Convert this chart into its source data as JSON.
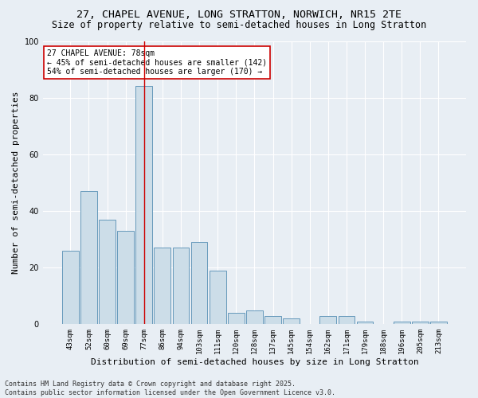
{
  "title_line1": "27, CHAPEL AVENUE, LONG STRATTON, NORWICH, NR15 2TE",
  "title_line2": "Size of property relative to semi-detached houses in Long Stratton",
  "xlabel": "Distribution of semi-detached houses by size in Long Stratton",
  "ylabel": "Number of semi-detached properties",
  "categories": [
    "43sqm",
    "52sqm",
    "60sqm",
    "69sqm",
    "77sqm",
    "86sqm",
    "94sqm",
    "103sqm",
    "111sqm",
    "120sqm",
    "128sqm",
    "137sqm",
    "145sqm",
    "154sqm",
    "162sqm",
    "171sqm",
    "179sqm",
    "188sqm",
    "196sqm",
    "205sqm",
    "213sqm"
  ],
  "values": [
    26,
    47,
    37,
    33,
    84,
    27,
    27,
    29,
    19,
    4,
    5,
    3,
    2,
    0,
    3,
    3,
    1,
    0,
    1,
    1,
    1
  ],
  "bar_color": "#ccdde8",
  "bar_edge_color": "#6699bb",
  "highlight_bar_index": 4,
  "highlight_line_color": "#cc0000",
  "annotation_text": "27 CHAPEL AVENUE: 78sqm\n← 45% of semi-detached houses are smaller (142)\n54% of semi-detached houses are larger (170) →",
  "annotation_box_color": "#ffffff",
  "annotation_box_edge_color": "#cc0000",
  "ylim": [
    0,
    100
  ],
  "yticks": [
    0,
    20,
    40,
    60,
    80,
    100
  ],
  "footnote": "Contains HM Land Registry data © Crown copyright and database right 2025.\nContains public sector information licensed under the Open Government Licence v3.0.",
  "bg_color": "#e8eef4",
  "plot_bg_color": "#e8eef4",
  "grid_color": "#ffffff",
  "title_fontsize": 9.5,
  "subtitle_fontsize": 8.5,
  "tick_fontsize": 6.5,
  "label_fontsize": 8,
  "annotation_fontsize": 7,
  "footnote_fontsize": 6
}
